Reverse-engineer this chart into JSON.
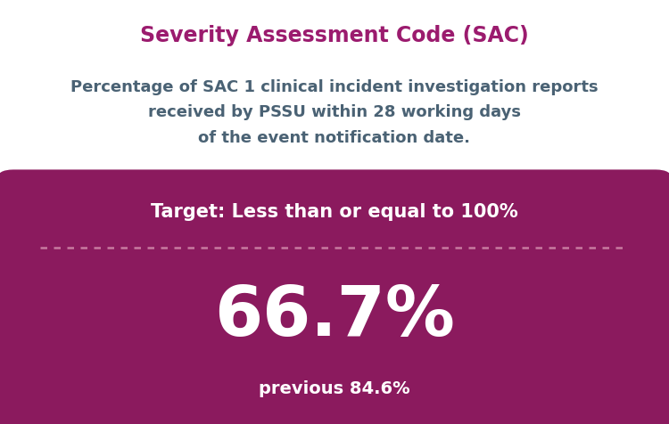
{
  "title": "Severity Assessment Code (SAC)",
  "title_color": "#9B1B6E",
  "subtitle_line1": "Percentage of SAC 1 clinical incident investigation reports",
  "subtitle_line2": "received by PSSU within 28 working days",
  "subtitle_line3": "of the event notification date.",
  "subtitle_color": "#4A6274",
  "box_bg_color": "#8B1A5E",
  "target_text": "Target: Less than or equal to 100%",
  "target_color": "#FFFFFF",
  "dashed_line_color": "#C87AA0",
  "main_value": "66.7%",
  "main_value_color": "#FFFFFF",
  "previous_text": "previous 84.6%",
  "previous_color": "#FFFFFF",
  "bg_color": "#FFFFFF",
  "title_fontsize": 17,
  "subtitle_fontsize": 13,
  "target_fontsize": 15,
  "main_fontsize": 56,
  "previous_fontsize": 14,
  "fig_width": 7.5,
  "fig_height": 4.76,
  "dpi": 100
}
